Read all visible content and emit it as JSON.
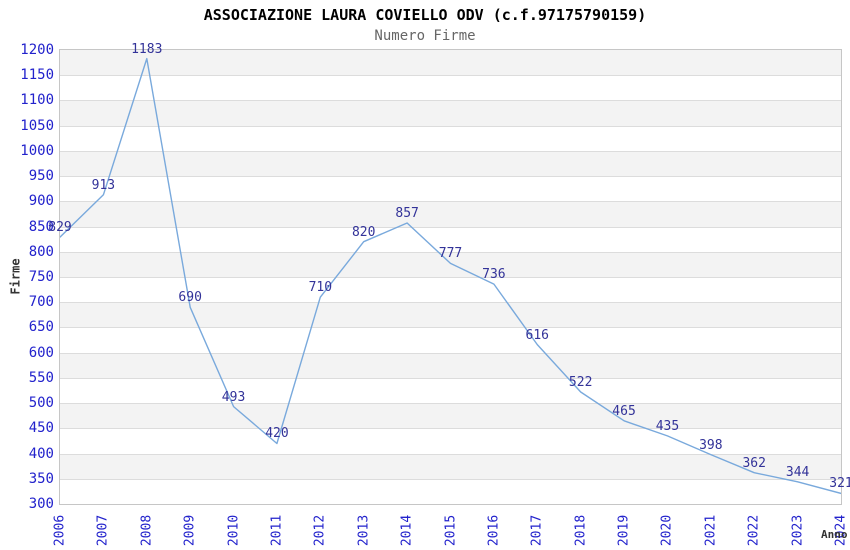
{
  "header": {
    "title": "ASSOCIAZIONE LAURA COVIELLO ODV (c.f.97175790159)",
    "subtitle": "Numero Firme"
  },
  "chart_data": {
    "type": "line",
    "title": "ASSOCIAZIONE LAURA COVIELLO ODV (c.f.97175790159)",
    "subtitle": "Numero Firme",
    "xlabel": "Anno",
    "ylabel": "Firme",
    "categories": [
      "2006",
      "2007",
      "2008",
      "2009",
      "2010",
      "2011",
      "2012",
      "2013",
      "2014",
      "2015",
      "2016",
      "2017",
      "2018",
      "2019",
      "2020",
      "2021",
      "2022",
      "2023",
      "2024"
    ],
    "series": [
      {
        "name": "Numero Firme",
        "values": [
          829,
          913,
          1183,
          690,
          493,
          420,
          710,
          820,
          857,
          777,
          736,
          616,
          522,
          465,
          435,
          398,
          362,
          344,
          321
        ]
      }
    ],
    "ylim": [
      300,
      1200
    ],
    "ytick_step": 50,
    "data_labels": "shown above each point",
    "grid": "horizontal gridlines with alternating gray bands",
    "legend": "none",
    "colors": {
      "line": "#79a9dc",
      "axis_tick_label": "#2222cc",
      "data_label": "#333399",
      "band_fill": "#f3f3f3",
      "gridline": "#dcdcdc",
      "plot_border": "#c6c6c6",
      "title": "#000000",
      "subtitle": "#666666",
      "axis_title": "#333333"
    }
  }
}
